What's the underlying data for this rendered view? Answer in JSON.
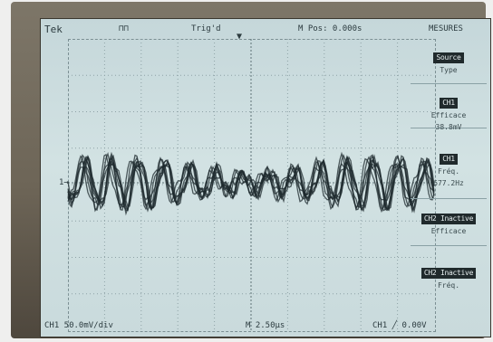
{
  "header": {
    "brand": "Tek",
    "trigger_status": "Trig'd",
    "position": "M Pos: 0.000s",
    "menu": "MESURES"
  },
  "side_menu": [
    {
      "tag": "Source",
      "value": "Type"
    },
    {
      "tag": "CH1",
      "value": "Efficace",
      "reading": "38.8mV"
    },
    {
      "tag": "CH1",
      "value": "Fréq.",
      "reading": "677.2Hz"
    },
    {
      "tag": "CH2 Inactive",
      "value": "Efficace"
    },
    {
      "tag": "CH2 Inactive",
      "value": "Fréq."
    }
  ],
  "footer": {
    "ch1_scale": "CH1  50.0mV/div",
    "timebase": "M 2.50µs",
    "trigger": "CH1  ╱  0.00V"
  },
  "ground_marker": "1→",
  "colors": {
    "screen": "#cddfe0",
    "trace": "#1e2a2e",
    "bezel": "#6d6557"
  }
}
